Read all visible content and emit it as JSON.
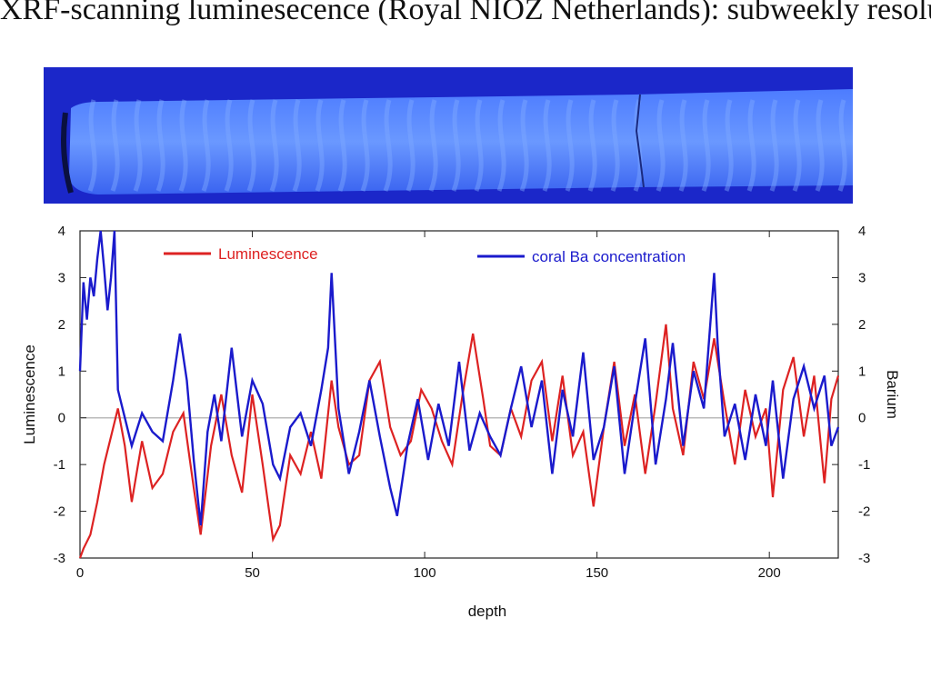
{
  "slide": {
    "title": "XRF-scanning luminesecence (Royal NIOZ Netherlands): subweekly resolution"
  },
  "colors": {
    "luminescence": "#dd2222",
    "barium": "#1a1acc",
    "zero_line": "#bbbbbb",
    "core_background": "#1b27c9",
    "core_band": "#7fa8ff"
  },
  "chart_data": {
    "type": "line",
    "title": "",
    "xlabel": "depth",
    "ylabel": "Luminescence",
    "y2label": "Barium",
    "xlim": [
      0,
      220
    ],
    "ylim": [
      -3,
      4
    ],
    "y2lim": [
      -3,
      4
    ],
    "xticks": [
      0,
      50,
      100,
      150,
      200
    ],
    "yticks": [
      -3,
      -2,
      -1,
      0,
      1,
      2,
      3,
      4
    ],
    "y2ticks": [
      -3,
      -2,
      -1,
      0,
      1,
      2,
      3,
      4
    ],
    "legend_placement": "top",
    "grid": false,
    "series": [
      {
        "name": "Luminescence",
        "color": "#dd2222",
        "x": [
          0,
          1,
          3,
          5,
          7,
          9,
          11,
          13,
          15,
          18,
          21,
          24,
          27,
          30,
          33,
          35,
          38,
          41,
          44,
          47,
          50,
          53,
          56,
          58,
          61,
          64,
          67,
          70,
          73,
          75,
          78,
          81,
          84,
          87,
          90,
          93,
          96,
          99,
          102,
          105,
          108,
          111,
          114,
          117,
          119,
          122,
          125,
          128,
          131,
          134,
          137,
          140,
          143,
          146,
          149,
          152,
          155,
          158,
          161,
          164,
          167,
          170,
          172,
          175,
          178,
          181,
          184,
          187,
          190,
          193,
          196,
          199,
          201,
          204,
          207,
          210,
          213,
          216,
          218,
          220
        ],
        "values": [
          -3.0,
          -2.8,
          -2.5,
          -1.8,
          -1.0,
          -0.4,
          0.2,
          -0.6,
          -1.8,
          -0.5,
          -1.5,
          -1.2,
          -0.3,
          0.1,
          -1.5,
          -2.5,
          -0.6,
          0.5,
          -0.8,
          -1.6,
          0.5,
          -1.0,
          -2.6,
          -2.3,
          -0.8,
          -1.2,
          -0.3,
          -1.3,
          0.8,
          -0.2,
          -1.0,
          -0.8,
          0.8,
          1.2,
          -0.2,
          -0.8,
          -0.5,
          0.6,
          0.2,
          -0.5,
          -1.0,
          0.5,
          1.8,
          0.4,
          -0.6,
          -0.8,
          0.2,
          -0.4,
          0.8,
          1.2,
          -0.5,
          0.9,
          -0.8,
          -0.3,
          -1.9,
          -0.2,
          1.2,
          -0.6,
          0.5,
          -1.2,
          0.3,
          2.0,
          0.2,
          -0.8,
          1.2,
          0.4,
          1.7,
          0.3,
          -1.0,
          0.6,
          -0.4,
          0.2,
          -1.7,
          0.6,
          1.3,
          -0.4,
          0.9,
          -1.4,
          0.4,
          0.9
        ]
      },
      {
        "name": "coral Ba concentration",
        "color": "#1a1acc",
        "x": [
          0,
          1,
          2,
          3,
          4,
          5,
          6,
          7,
          8,
          9,
          10,
          11,
          13,
          15,
          18,
          21,
          24,
          27,
          29,
          31,
          33,
          35,
          37,
          39,
          41,
          44,
          47,
          50,
          53,
          56,
          58,
          61,
          64,
          67,
          70,
          72,
          73,
          75,
          78,
          81,
          84,
          87,
          90,
          92,
          95,
          98,
          101,
          104,
          107,
          110,
          113,
          116,
          119,
          122,
          125,
          128,
          131,
          134,
          137,
          140,
          143,
          146,
          149,
          152,
          155,
          158,
          161,
          164,
          167,
          170,
          172,
          175,
          178,
          181,
          184,
          185,
          187,
          190,
          193,
          196,
          199,
          201,
          204,
          207,
          210,
          213,
          216,
          218,
          220
        ],
        "values": [
          1.0,
          2.9,
          2.1,
          3.0,
          2.6,
          3.4,
          4.0,
          3.2,
          2.3,
          3.0,
          4.0,
          0.6,
          0.0,
          -0.6,
          0.1,
          -0.3,
          -0.5,
          0.8,
          1.8,
          0.8,
          -0.9,
          -2.3,
          -0.3,
          0.5,
          -0.5,
          1.5,
          -0.4,
          0.8,
          0.3,
          -1.0,
          -1.3,
          -0.2,
          0.1,
          -0.6,
          0.6,
          1.5,
          3.1,
          0.2,
          -1.2,
          -0.3,
          0.8,
          -0.4,
          -1.5,
          -2.1,
          -0.6,
          0.4,
          -0.9,
          0.3,
          -0.6,
          1.2,
          -0.7,
          0.1,
          -0.4,
          -0.8,
          0.2,
          1.1,
          -0.2,
          0.8,
          -1.2,
          0.6,
          -0.4,
          1.4,
          -0.9,
          -0.2,
          1.1,
          -1.2,
          0.3,
          1.7,
          -1.0,
          0.4,
          1.6,
          -0.6,
          1.0,
          0.2,
          3.1,
          1.6,
          -0.4,
          0.3,
          -0.9,
          0.5,
          -0.6,
          0.8,
          -1.3,
          0.4,
          1.1,
          0.2,
          0.9,
          -0.6,
          -0.2
        ]
      }
    ]
  }
}
